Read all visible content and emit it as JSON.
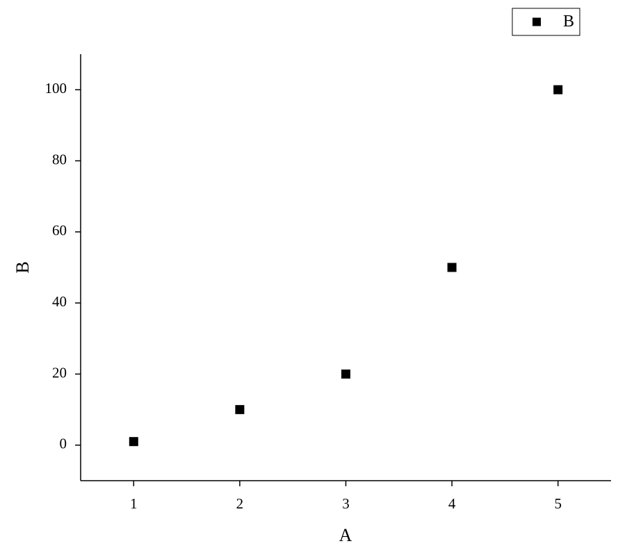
{
  "chart_data": {
    "type": "scatter",
    "x": [
      1,
      2,
      3,
      4,
      5
    ],
    "series": [
      {
        "name": "B",
        "color": "#000000",
        "values": [
          1,
          10,
          20,
          50,
          100
        ]
      }
    ],
    "xlabel": "A",
    "ylabel": "B",
    "xlim": [
      0.5,
      5.5
    ],
    "xticks": [
      1,
      2,
      3,
      4,
      5
    ],
    "ylim": [
      -10,
      110
    ],
    "yticks": [
      0,
      20,
      40,
      60,
      80,
      100
    ],
    "grid": false,
    "legend": "upper right"
  }
}
